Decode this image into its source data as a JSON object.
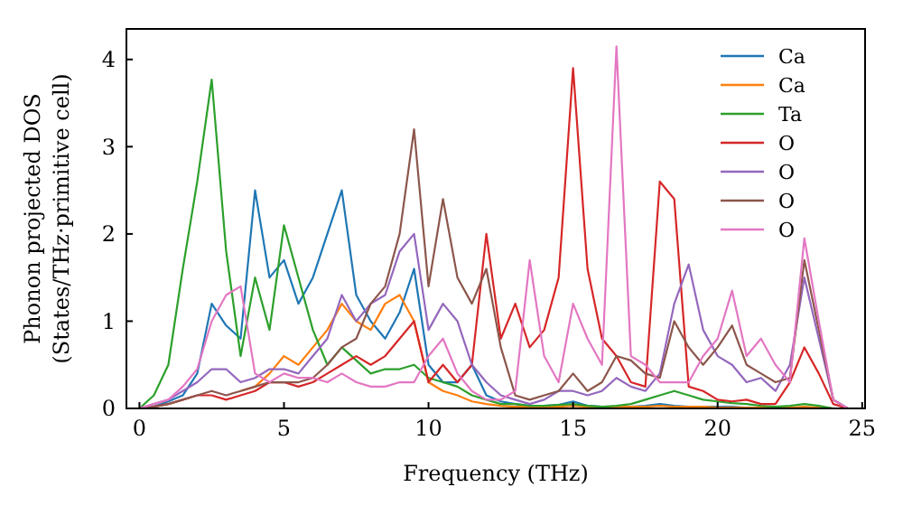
{
  "chart_data": {
    "type": "line",
    "xlabel": "Frequency (THz)",
    "ylabel": "Phonon projected DOS\n(States/THz·primitive cell)",
    "x": [
      0,
      0.5,
      1,
      1.5,
      2,
      2.5,
      3,
      3.5,
      4,
      4.5,
      5,
      5.5,
      6,
      6.5,
      7,
      7.5,
      8,
      8.5,
      9,
      9.5,
      10,
      10.5,
      11,
      11.5,
      12,
      12.5,
      13,
      13.5,
      14,
      14.5,
      15,
      15.5,
      16,
      16.5,
      17,
      17.5,
      18,
      18.5,
      19,
      19.5,
      20,
      20.5,
      21,
      21.5,
      22,
      22.5,
      23,
      23.5,
      24,
      24.5
    ],
    "series": [
      {
        "name": "Ca",
        "color": "#1f77b4",
        "values": [
          0,
          0.02,
          0.08,
          0.15,
          0.4,
          1.2,
          0.95,
          0.8,
          2.5,
          1.5,
          1.7,
          1.2,
          1.5,
          2.0,
          2.5,
          1.3,
          1.0,
          0.8,
          1.1,
          1.6,
          0.5,
          0.3,
          0.3,
          0.5,
          0.15,
          0.08,
          0.05,
          0.03,
          0.03,
          0.04,
          0.08,
          0.03,
          0.02,
          0.02,
          0.02,
          0.03,
          0.05,
          0.03,
          0.02,
          0.02,
          0.02,
          0.02,
          0.01,
          0.01,
          null,
          null,
          null,
          null,
          null,
          null
        ]
      },
      {
        "name": "Ca",
        "color": "#ff7f0e",
        "values": [
          null,
          null,
          null,
          null,
          null,
          null,
          null,
          0.2,
          0.25,
          0.4,
          0.6,
          0.5,
          0.7,
          0.9,
          1.2,
          1.0,
          0.9,
          1.2,
          1.3,
          1.0,
          0.3,
          0.2,
          0.15,
          0.08,
          0.05,
          0.03,
          0.02,
          0.02,
          0.02,
          0.02,
          0.03,
          0.02,
          0.02,
          0.02,
          0.02,
          0.02,
          0.03,
          0.02,
          0.02,
          0.02,
          0.01,
          0.01,
          0.01,
          0.01,
          0.01,
          0.01,
          0.02,
          0.01,
          0,
          0
        ]
      },
      {
        "name": "Ta",
        "color": "#2ca02c",
        "values": [
          0,
          0.15,
          0.5,
          1.6,
          2.6,
          3.77,
          1.8,
          0.6,
          1.5,
          0.9,
          2.1,
          1.5,
          0.9,
          0.5,
          0.7,
          0.55,
          0.4,
          0.45,
          0.45,
          0.5,
          0.35,
          0.3,
          0.25,
          0.15,
          0.1,
          0.05,
          0.05,
          0.03,
          0.03,
          0.04,
          0.05,
          0.03,
          0.02,
          0.03,
          0.05,
          0.1,
          0.15,
          0.2,
          0.15,
          0.1,
          0.08,
          0.06,
          0.05,
          0.03,
          0.02,
          0.03,
          0.05,
          0.03,
          0,
          0
        ]
      },
      {
        "name": "O",
        "color": "#d62728",
        "values": [
          0,
          0.02,
          0.05,
          0.1,
          0.15,
          0.15,
          0.1,
          0.15,
          0.2,
          0.3,
          0.3,
          0.25,
          0.3,
          0.4,
          0.5,
          0.6,
          0.5,
          0.6,
          0.8,
          1.0,
          0.3,
          0.5,
          0.3,
          0.5,
          2.0,
          0.8,
          1.2,
          0.7,
          0.9,
          1.5,
          3.9,
          1.6,
          0.8,
          0.6,
          0.3,
          0.25,
          2.6,
          2.4,
          0.25,
          0.2,
          0.1,
          0.08,
          0.1,
          0.05,
          0.05,
          0.3,
          0.7,
          0.4,
          0.05,
          0
        ]
      },
      {
        "name": "O",
        "color": "#9467bd",
        "values": [
          0,
          0.05,
          0.1,
          0.2,
          0.3,
          0.45,
          0.45,
          0.3,
          0.35,
          0.45,
          0.45,
          0.4,
          0.6,
          0.8,
          1.3,
          1.0,
          1.2,
          1.3,
          1.8,
          2.0,
          0.9,
          1.2,
          1.0,
          0.5,
          0.3,
          0.15,
          0.1,
          0.05,
          0.1,
          0.2,
          0.2,
          0.15,
          0.2,
          0.35,
          0.25,
          0.2,
          0.4,
          1.2,
          1.65,
          0.9,
          0.6,
          0.5,
          0.3,
          0.35,
          0.2,
          0.5,
          1.5,
          0.8,
          0.1,
          0
        ]
      },
      {
        "name": "O",
        "color": "#8c564b",
        "values": [
          0,
          0.02,
          0.05,
          0.1,
          0.15,
          0.2,
          0.15,
          0.2,
          0.25,
          0.3,
          0.3,
          0.3,
          0.35,
          0.5,
          0.7,
          0.8,
          1.2,
          1.4,
          2.0,
          3.2,
          1.4,
          2.4,
          1.5,
          1.2,
          1.6,
          0.7,
          0.15,
          0.1,
          0.15,
          0.2,
          0.4,
          0.2,
          0.3,
          0.6,
          0.55,
          0.4,
          0.35,
          1.0,
          0.7,
          0.5,
          0.7,
          0.95,
          0.5,
          0.4,
          0.3,
          0.35,
          1.7,
          0.9,
          0.1,
          0
        ]
      },
      {
        "name": "O",
        "color": "#e377c2",
        "values": [
          0,
          0.05,
          0.1,
          0.25,
          0.45,
          1.0,
          1.3,
          1.4,
          0.4,
          0.3,
          0.4,
          0.35,
          0.35,
          0.3,
          0.4,
          0.3,
          0.25,
          0.25,
          0.3,
          0.3,
          0.6,
          0.8,
          0.4,
          0.2,
          0.1,
          0.1,
          0.2,
          1.7,
          0.6,
          0.3,
          1.2,
          0.8,
          0.5,
          4.15,
          0.6,
          0.5,
          0.3,
          0.3,
          0.3,
          0.6,
          0.8,
          1.35,
          0.6,
          0.8,
          0.5,
          0.3,
          1.95,
          1.0,
          0.1,
          0
        ]
      }
    ],
    "xlim": [
      -0.45,
      25.1
    ],
    "ylim": [
      0,
      4.35
    ],
    "xticks": [
      0,
      5,
      10,
      15,
      20,
      25
    ],
    "yticks": [
      0,
      1,
      2,
      3,
      4
    ],
    "legend": "top right",
    "line_style": "solid"
  }
}
